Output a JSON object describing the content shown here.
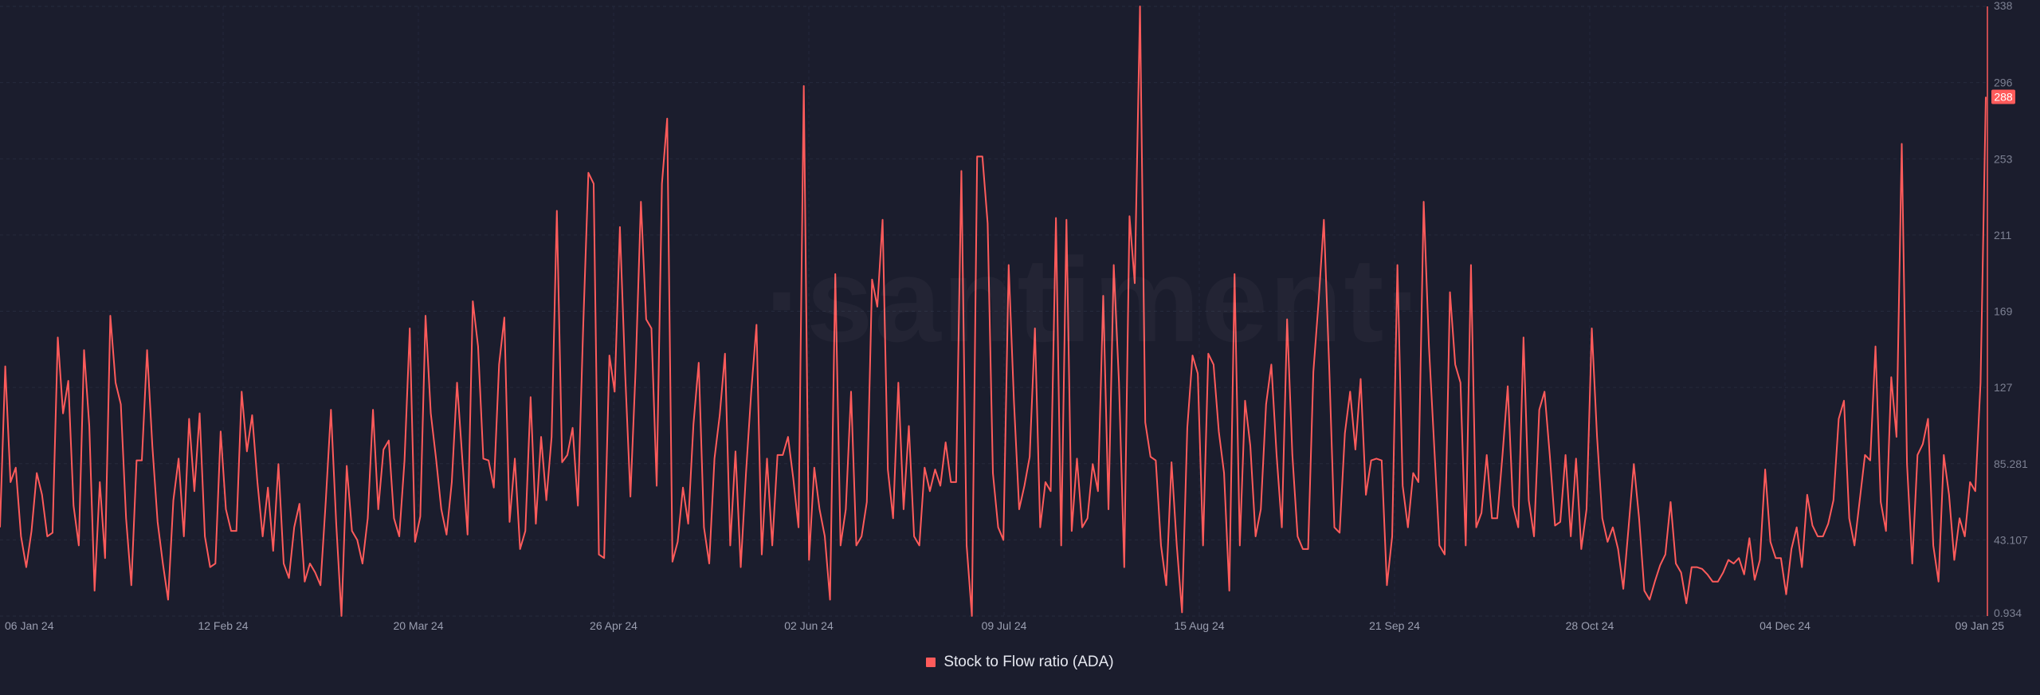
{
  "watermark": "·santiment·",
  "legend": {
    "label": "Stock to Flow ratio (ADA)",
    "color": "#ff5b5b"
  },
  "chart_data": {
    "type": "line",
    "title": "",
    "xlabel": "",
    "ylabel": "",
    "ylim": [
      0.934,
      338
    ],
    "y_tick_labels": [
      "338",
      "296",
      "253",
      "211",
      "169",
      "127",
      "85.281",
      "43.107",
      "0.934"
    ],
    "x_tick_labels": [
      "06 Jan 24",
      "12 Feb 24",
      "20 Mar 24",
      "26 Apr 24",
      "02 Jun 24",
      "09 Jul 24",
      "15 Aug 24",
      "21 Sep 24",
      "28 Oct 24",
      "04 Dec 24",
      "09 Jan 25"
    ],
    "last_value_label": "288",
    "series": [
      {
        "name": "Stock to Flow ratio (ADA)",
        "color": "#ff5b5b",
        "values": [
          50,
          139,
          75,
          83,
          45,
          28,
          48,
          80,
          68,
          45,
          47,
          155,
          113,
          131,
          62,
          40,
          148,
          106,
          15,
          75,
          33,
          167,
          130,
          118,
          55,
          18,
          87,
          87,
          148,
          95,
          53,
          30,
          10,
          65,
          88,
          45,
          110,
          70,
          113,
          45,
          28,
          30,
          103,
          60,
          48,
          48,
          125,
          92,
          112,
          75,
          45,
          72,
          37,
          85,
          30,
          22,
          50,
          63,
          20,
          30,
          25,
          18,
          64,
          115,
          52,
          1,
          84,
          48,
          43,
          30,
          55,
          115,
          60,
          93,
          98,
          55,
          45,
          87,
          160,
          42,
          56,
          167,
          113,
          88,
          60,
          46,
          75,
          130,
          88,
          46,
          175,
          150,
          88,
          87,
          72,
          140,
          166,
          53,
          88,
          38,
          48,
          122,
          52,
          100,
          65,
          100,
          225,
          86,
          90,
          105,
          62,
          160,
          246,
          240,
          35,
          33,
          145,
          125,
          216,
          135,
          67,
          138,
          230,
          165,
          160,
          73,
          240,
          276,
          31,
          42,
          72,
          52,
          107,
          141,
          50,
          30,
          88,
          112,
          146,
          40,
          92,
          28,
          80,
          125,
          162,
          35,
          88,
          40,
          90,
          90,
          100,
          77,
          50,
          294,
          32,
          83,
          60,
          45,
          10,
          190,
          40,
          60,
          125,
          40,
          45,
          64,
          187,
          172,
          220,
          82,
          55,
          130,
          60,
          106,
          45,
          40,
          83,
          70,
          82,
          73,
          97,
          75,
          75,
          247,
          40,
          1,
          255,
          255,
          218,
          80,
          50,
          43,
          195,
          120,
          60,
          73,
          89,
          160,
          50,
          75,
          70,
          221,
          40,
          220,
          48,
          88,
          50,
          55,
          85,
          70,
          178,
          60,
          195,
          130,
          28,
          222,
          185,
          338,
          108,
          89,
          87,
          40,
          18,
          86,
          40,
          3,
          105,
          145,
          135,
          40,
          146,
          140,
          103,
          80,
          15,
          190,
          40,
          120,
          95,
          45,
          60,
          118,
          140,
          90,
          50,
          165,
          90,
          45,
          38,
          38,
          136,
          175,
          220,
          140,
          50,
          47,
          102,
          125,
          93,
          132,
          68,
          87,
          88,
          87,
          18,
          45,
          195,
          73,
          50,
          80,
          75,
          230,
          150,
          95,
          40,
          35,
          180,
          140,
          130,
          40,
          195,
          50,
          58,
          90,
          55,
          55,
          90,
          128,
          62,
          50,
          155,
          65,
          45,
          115,
          125,
          90,
          51,
          53,
          90,
          45,
          88,
          38,
          60,
          160,
          100,
          55,
          42,
          50,
          38,
          16,
          50,
          85,
          55,
          15,
          10,
          20,
          29,
          35,
          64,
          30,
          25,
          8,
          28,
          28,
          27,
          24,
          20,
          20,
          25,
          32,
          30,
          33,
          24,
          44,
          21,
          32,
          82,
          42,
          33,
          33,
          13,
          38,
          50,
          28,
          68,
          51,
          45,
          45,
          52,
          65,
          110,
          120,
          55,
          40,
          65,
          90,
          87,
          150,
          64,
          48,
          133,
          100,
          262,
          85,
          30,
          90,
          96,
          110,
          40,
          20,
          90,
          68,
          32,
          55,
          45,
          75,
          70,
          130,
          288
        ]
      }
    ],
    "grid": true,
    "legend_position": "bottom-center"
  }
}
